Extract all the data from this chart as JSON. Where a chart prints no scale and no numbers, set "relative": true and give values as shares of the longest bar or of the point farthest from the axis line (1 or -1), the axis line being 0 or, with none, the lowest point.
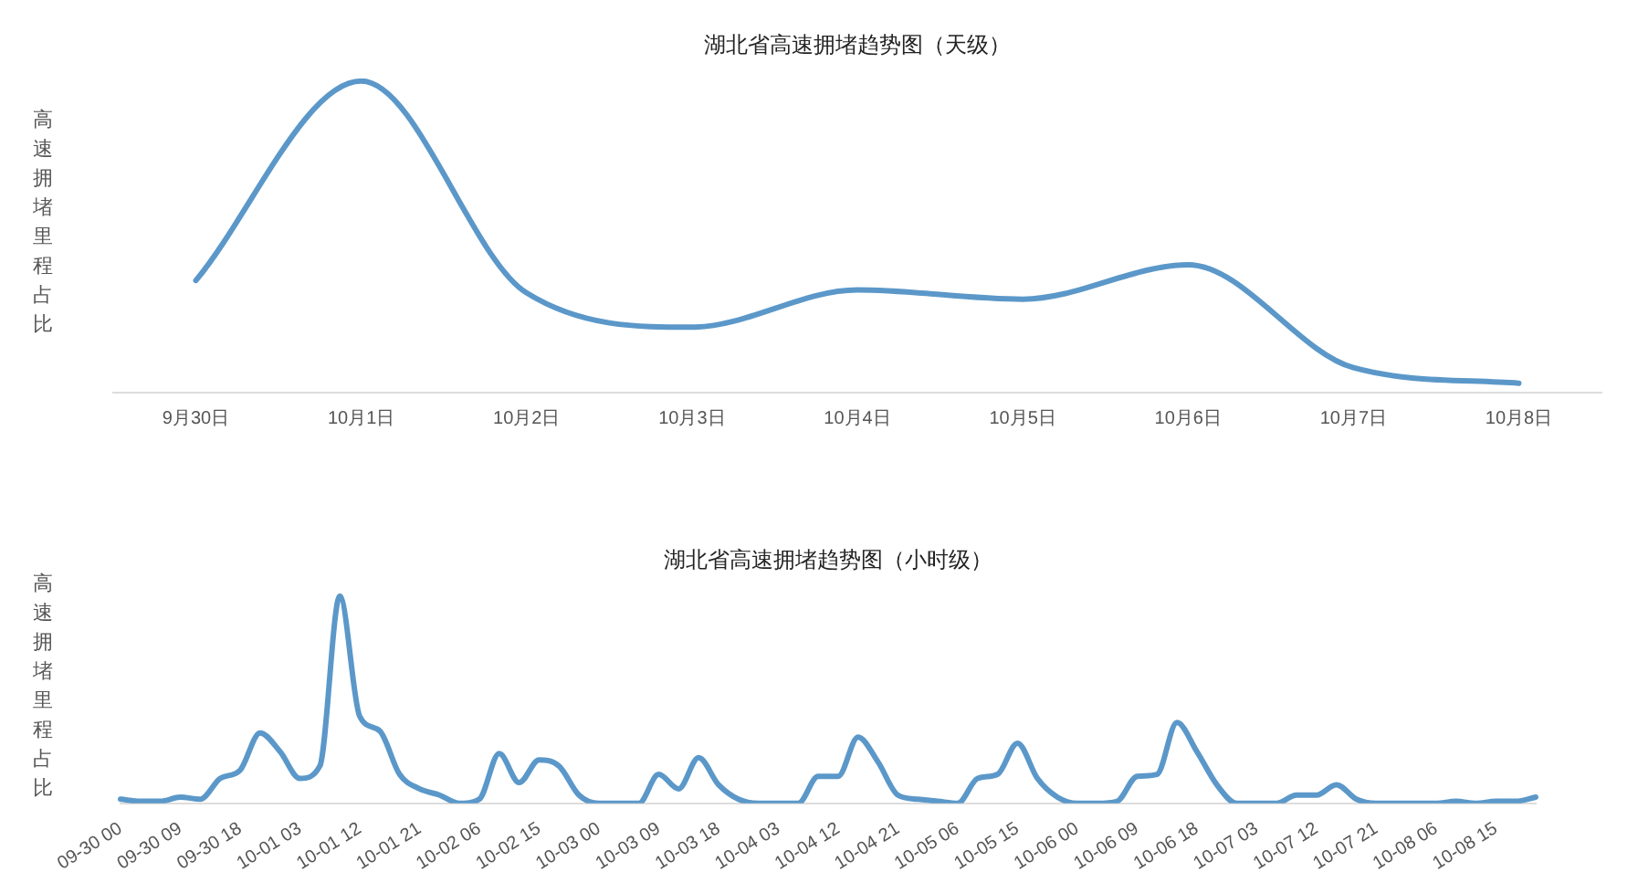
{
  "chart_data": [
    {
      "type": "line",
      "title": "湖北省高速拥堵趋势图（天级）",
      "ylabel": "高速拥堵里程占比",
      "relative": true,
      "categories": [
        "9月30日",
        "10月1日",
        "10月2日",
        "10月3日",
        "10月4日",
        "10月5日",
        "10月6日",
        "10月7日",
        "10月8日"
      ],
      "series": [
        {
          "color": "#5b98c9",
          "values": [
            0.36,
            1.0,
            0.32,
            0.21,
            0.33,
            0.3,
            0.41,
            0.08,
            0.03
          ]
        }
      ],
      "marker": "none",
      "grid": false,
      "legend": false
    },
    {
      "type": "line",
      "title": "湖北省高速拥堵趋势图（小时级）",
      "ylabel": "高速拥堵里程占比",
      "relative": true,
      "categories": [
        "09-30 00",
        null,
        null,
        "09-30 09",
        null,
        null,
        "09-30 18",
        null,
        null,
        "10-01 03",
        null,
        null,
        "10-01 12",
        null,
        null,
        "10-01 21",
        null,
        null,
        "10-02 06",
        null,
        null,
        "10-02 15",
        null,
        null,
        "10-03 00",
        null,
        null,
        "10-03 09",
        null,
        null,
        "10-03 18",
        null,
        null,
        "10-04 03",
        null,
        null,
        "10-04 12",
        null,
        null,
        "10-04 21",
        null,
        null,
        "10-05 06",
        null,
        null,
        "10-05 15",
        null,
        null,
        "10-06 00",
        null,
        null,
        "10-06 09",
        null,
        null,
        "10-06 18",
        null,
        null,
        "10-07 03",
        null,
        null,
        "10-07 12",
        null,
        null,
        "10-07 21",
        null,
        null,
        "10-08 06",
        null,
        null,
        "10-08 15",
        null,
        null
      ],
      "series": [
        {
          "color": "#5b98c9",
          "values": [
            0.02,
            0.01,
            0.01,
            0.03,
            0.02,
            0.12,
            0.16,
            0.34,
            0.25,
            0.12,
            0.18,
            1.0,
            0.42,
            0.35,
            0.14,
            0.07,
            0.04,
            0.0,
            0.02,
            0.24,
            0.1,
            0.21,
            0.18,
            0.04,
            0.0,
            0.0,
            0.0,
            0.14,
            0.07,
            0.22,
            0.09,
            0.02,
            0.0,
            0.0,
            0.0,
            0.13,
            0.13,
            0.32,
            0.2,
            0.04,
            0.02,
            0.01,
            0.0,
            0.12,
            0.14,
            0.29,
            0.12,
            0.03,
            0.0,
            0.0,
            0.01,
            0.13,
            0.14,
            0.39,
            0.25,
            0.09,
            0.0,
            0.0,
            0.0,
            0.04,
            0.04,
            0.09,
            0.02,
            0.0,
            0.0,
            0.0,
            0.0,
            0.01,
            0.0,
            0.01,
            0.01,
            0.03
          ]
        }
      ],
      "marker": "none",
      "grid": false,
      "legend": false
    }
  ]
}
